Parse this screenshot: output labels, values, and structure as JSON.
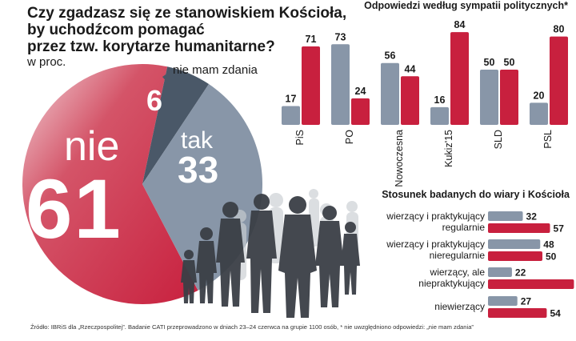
{
  "headline": {
    "lines": [
      "Czy zgadzasz się ze stanowiskiem Kościoła,",
      "by uchodźcom pomagać",
      "przez tzw. korytarze  humanitarne?"
    ],
    "unit": "w proc."
  },
  "colors": {
    "nie": "#c8203e",
    "tak": "#8896a8",
    "no_opinion": "#4a5868",
    "bar_grey": "#8896a8",
    "bar_red": "#c8203e",
    "silhouette": "#3b3f46"
  },
  "footnote": "Źródło: IBRiS dla „Rzeczpospolitej”. Badanie CATI przeprowadzono w dniach 23–24 czerwca na grupie 1100 osób,  * nie uwzględniono odpowiedzi: „nie mam zdania”",
  "chart_data": [
    {
      "type": "pie",
      "title": "Czy zgadzasz się ze stanowiskiem Kościoła, by uchodźcom pomagać przez tzw. korytarze humanitarne?",
      "unit": "w proc.",
      "slices": [
        {
          "label": "nie",
          "value": 61
        },
        {
          "label": "nie mam zdania",
          "value": 6
        },
        {
          "label": "tak",
          "value": 33
        }
      ]
    },
    {
      "type": "bar",
      "title": "Odpowiedzi według sympatii politycznych*",
      "categories": [
        "PiS",
        "PO",
        "Nowoczesna",
        "Kukiz'15",
        "SLD",
        "PSL"
      ],
      "series": [
        {
          "name": "tak",
          "values": [
            17,
            73,
            56,
            16,
            50,
            20
          ]
        },
        {
          "name": "nie",
          "values": [
            71,
            24,
            44,
            84,
            50,
            80
          ]
        }
      ],
      "ylim": [
        0,
        100
      ]
    },
    {
      "type": "bar",
      "orientation": "horizontal",
      "title": "Stosunek badanych do wiary i Kościoła",
      "categories": [
        [
          "wierzący i praktykujący",
          "regularnie"
        ],
        [
          "wierzący i praktykujący",
          "nieregularnie"
        ],
        [
          "wierzący, ale",
          "niepraktykujący"
        ],
        [
          "niewierzący"
        ]
      ],
      "series": [
        {
          "name": "tak",
          "values": [
            32,
            48,
            22,
            27
          ]
        },
        {
          "name": "nie",
          "values": [
            57,
            50,
            79,
            54
          ]
        }
      ],
      "xlim": [
        0,
        100
      ]
    }
  ]
}
